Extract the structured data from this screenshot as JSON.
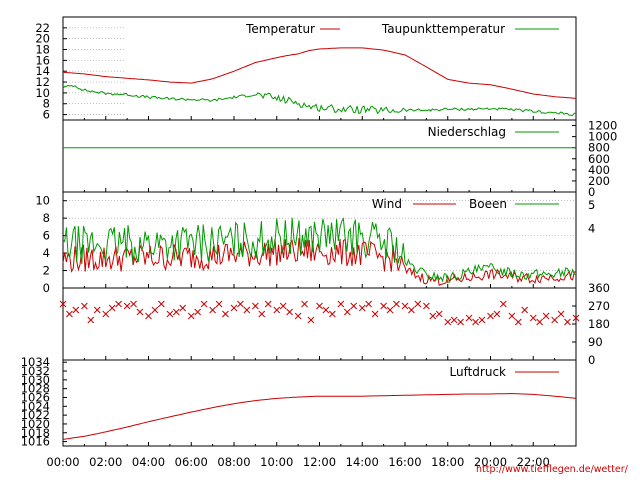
{
  "chart_data": [
    {
      "type": "line",
      "panel": "temperature",
      "ylim": [
        5,
        24
      ],
      "yticks": [
        "22",
        "20",
        "18",
        "16",
        "14",
        "12",
        "10",
        "8",
        "6"
      ],
      "ytick_values": [
        22,
        20,
        18,
        16,
        14,
        12,
        10,
        8,
        6
      ],
      "grid": true,
      "legend": "top",
      "series": [
        {
          "name": "Temperatur",
          "color": "#cc0000",
          "x": [
            0,
            1,
            2,
            3,
            4,
            5,
            6,
            7,
            8,
            9,
            10,
            10.5,
            11,
            11.5,
            12,
            13,
            14,
            15,
            16,
            17,
            18,
            19,
            20,
            21,
            22,
            23,
            24
          ],
          "values": [
            13.8,
            13.5,
            13.0,
            12.7,
            12.4,
            12.0,
            11.8,
            12.6,
            14.0,
            15.6,
            16.5,
            16.9,
            17.2,
            17.8,
            18.1,
            18.3,
            18.3,
            17.9,
            17.0,
            14.8,
            12.5,
            11.8,
            11.5,
            10.7,
            9.8,
            9.3,
            9.0
          ]
        },
        {
          "name": "Taupunkttemperatur",
          "color": "#009900",
          "x": [
            0,
            0.5,
            1,
            2,
            3,
            4,
            5,
            6,
            7,
            8,
            9,
            10,
            11,
            11.5,
            12,
            13,
            14,
            15,
            16,
            17,
            18,
            19,
            20,
            21,
            22,
            23,
            24
          ],
          "values": [
            11.0,
            11.4,
            10.5,
            9.9,
            9.7,
            9.2,
            8.9,
            8.8,
            8.6,
            9.2,
            9.7,
            9.0,
            8.2,
            7.5,
            7.3,
            7.0,
            6.9,
            6.7,
            6.8,
            6.8,
            7.0,
            7.0,
            7.1,
            6.9,
            6.6,
            6.3,
            6.0
          ]
        }
      ]
    },
    {
      "type": "line",
      "panel": "precipitation",
      "ylim": [
        0,
        1300
      ],
      "yticks": [
        "1200",
        "1000",
        "800",
        "600",
        "400",
        "200",
        "0"
      ],
      "ytick_values": [
        1200,
        1000,
        800,
        600,
        400,
        200,
        0
      ],
      "legend": "top",
      "series": [
        {
          "name": "Niederschlag",
          "color": "#009900",
          "x": [
            0,
            24
          ],
          "values": [
            800,
            800
          ]
        }
      ]
    },
    {
      "type": "line",
      "panel": "wind",
      "ylim": [
        0,
        11
      ],
      "yticks": [
        "10",
        "8",
        "6",
        "4",
        "2",
        "0"
      ],
      "ytick_values": [
        10,
        8,
        6,
        4,
        2,
        0
      ],
      "right_labels": [
        "5",
        "4"
      ],
      "right_label_values": [
        9.5,
        6.8
      ],
      "grid": true,
      "legend": "top",
      "series": [
        {
          "name": "Wind",
          "color": "#cc0000",
          "x": [
            0,
            2,
            4,
            6,
            8,
            10,
            12,
            14,
            15.5,
            16,
            17,
            18,
            19,
            20,
            21,
            22,
            23,
            24
          ],
          "values": [
            3.3,
            3.4,
            3.5,
            3.6,
            3.8,
            4.1,
            4.2,
            3.9,
            3.3,
            2.0,
            1.0,
            0.8,
            1.2,
            1.6,
            1.3,
            1.1,
            1.3,
            1.4
          ]
        },
        {
          "name": "Boeen",
          "color": "#009900",
          "x": [
            0,
            2,
            4,
            6,
            8,
            10,
            12,
            14,
            15.5,
            16,
            17,
            18,
            19,
            20,
            21,
            22,
            23,
            24
          ],
          "values": [
            4.9,
            5.0,
            5.1,
            5.2,
            5.3,
            5.8,
            6.0,
            5.8,
            5.0,
            2.9,
            1.5,
            1.1,
            1.8,
            2.3,
            1.8,
            1.5,
            1.7,
            1.9
          ]
        }
      ]
    },
    {
      "type": "scatter",
      "panel": "wind-direction",
      "ylim": [
        0,
        360
      ],
      "yticks": [
        "360",
        "270",
        "180",
        "90",
        "0"
      ],
      "ytick_values": [
        360,
        270,
        180,
        90,
        0
      ],
      "series": [
        {
          "name": "",
          "color": "#cc0000",
          "x": [
            0,
            0.3,
            0.6,
            1,
            1.3,
            1.6,
            2,
            2.3,
            2.6,
            3,
            3.3,
            3.6,
            4,
            4.3,
            4.6,
            5,
            5.3,
            5.6,
            6,
            6.3,
            6.6,
            7,
            7.3,
            7.6,
            8,
            8.3,
            8.6,
            9,
            9.3,
            9.6,
            10,
            10.3,
            10.6,
            11,
            11.3,
            11.6,
            12,
            12.3,
            12.6,
            13,
            13.3,
            13.6,
            14,
            14.3,
            14.6,
            15,
            15.3,
            15.6,
            16,
            16.3,
            16.6,
            17,
            17.3,
            17.6,
            18,
            18.3,
            18.6,
            19,
            19.3,
            19.6,
            20,
            20.3,
            20.6,
            21,
            21.3,
            21.6,
            22,
            22.3,
            22.6,
            23,
            23.3,
            23.6,
            24
          ],
          "values": [
            280,
            230,
            250,
            270,
            200,
            250,
            230,
            260,
            280,
            270,
            280,
            240,
            220,
            250,
            280,
            230,
            240,
            260,
            220,
            240,
            280,
            250,
            280,
            230,
            260,
            280,
            250,
            270,
            230,
            280,
            250,
            270,
            240,
            220,
            280,
            200,
            270,
            250,
            230,
            280,
            240,
            270,
            260,
            280,
            230,
            270,
            250,
            280,
            270,
            250,
            280,
            270,
            220,
            230,
            190,
            200,
            190,
            210,
            190,
            200,
            220,
            230,
            280,
            220,
            190,
            250,
            210,
            190,
            220,
            200,
            230,
            190,
            210
          ]
        }
      ]
    },
    {
      "type": "line",
      "panel": "pressure",
      "ylim": [
        1015,
        1034.5
      ],
      "yticks": [
        "1034",
        "1032",
        "1030",
        "1028",
        "1026",
        "1024",
        "1022",
        "1020",
        "1018",
        "1016"
      ],
      "ytick_values": [
        1034,
        1032,
        1030,
        1028,
        1026,
        1024,
        1022,
        1020,
        1018,
        1016
      ],
      "xticks": [
        "00:00",
        "02:00",
        "04:00",
        "06:00",
        "08:00",
        "10:00",
        "12:00",
        "14:00",
        "16:00",
        "18:00",
        "20:00",
        "22:00"
      ],
      "xtick_values": [
        0,
        2,
        4,
        6,
        8,
        10,
        12,
        14,
        16,
        18,
        20,
        22
      ],
      "legend": "top",
      "series": [
        {
          "name": "Luftdruck",
          "color": "#cc0000",
          "x": [
            0,
            1,
            2,
            3,
            4,
            5,
            6,
            7,
            8,
            9,
            10,
            11,
            12,
            13,
            14,
            15,
            16,
            17,
            18,
            19,
            20,
            21,
            22,
            23,
            24
          ],
          "values": [
            1016.5,
            1017.2,
            1018.2,
            1019.3,
            1020.5,
            1021.6,
            1022.7,
            1023.7,
            1024.6,
            1025.3,
            1025.8,
            1026.1,
            1026.3,
            1026.3,
            1026.3,
            1026.4,
            1026.5,
            1026.6,
            1026.7,
            1026.8,
            1026.8,
            1026.9,
            1026.7,
            1026.3,
            1025.8
          ]
        }
      ]
    }
  ],
  "footer": {
    "url": "http://www.tiefflegen.de/wetter/"
  }
}
